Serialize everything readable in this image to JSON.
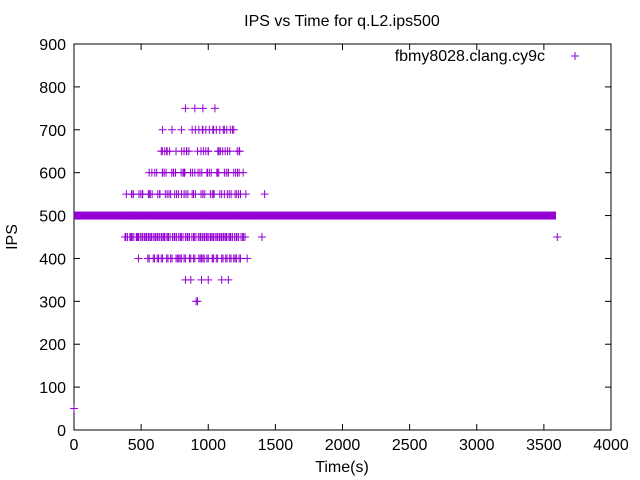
{
  "chart_data": {
    "type": "scatter",
    "title": "IPS vs Time for q.L2.ips500",
    "xlabel": "Time(s)",
    "ylabel": "IPS",
    "xlim": [
      0,
      4000
    ],
    "ylim": [
      0,
      900
    ],
    "xticks": [
      "0",
      "500",
      "1000",
      "1500",
      "2000",
      "2500",
      "3000",
      "3500",
      "4000"
    ],
    "yticks": [
      "0",
      "100",
      "200",
      "300",
      "400",
      "500",
      "600",
      "700",
      "800",
      "900"
    ],
    "grid": false,
    "legend_position": "top-right",
    "marker": "+",
    "series": [
      {
        "name": "fbmy8028.clang.cy9c",
        "color": "#9400d3",
        "x": [
          0,
          380,
          420,
          450,
          520,
          600,
          680,
          760,
          840,
          920,
          1000,
          1080,
          1160,
          1240,
          1300,
          3600,
          420,
          470,
          540,
          620,
          700,
          780,
          860,
          940,
          1020,
          1100,
          1180,
          1260,
          1400,
          390,
          440,
          510,
          560,
          640,
          720,
          800,
          880,
          960,
          1040,
          1120,
          1200,
          1280,
          1420,
          480,
          550,
          630,
          700,
          780,
          860,
          950,
          1030,
          1110,
          1190,
          1290,
          580,
          660,
          740,
          820,
          900,
          990,
          1070,
          1150,
          1230,
          650,
          690,
          760,
          840,
          920,
          1000,
          1080,
          1160,
          1230,
          660,
          730,
          800,
          880,
          960,
          1040,
          1120,
          1180,
          830,
          900,
          960,
          1050,
          830,
          870,
          950,
          1000,
          1100,
          1150,
          910,
          920
        ],
        "y": [
          50,
          500,
          500,
          500,
          500,
          500,
          500,
          500,
          500,
          500,
          500,
          500,
          500,
          500,
          500,
          450,
          450,
          450,
          450,
          450,
          450,
          450,
          450,
          450,
          450,
          450,
          450,
          450,
          450,
          550,
          550,
          550,
          550,
          550,
          550,
          550,
          550,
          550,
          550,
          550,
          550,
          550,
          550,
          400,
          400,
          400,
          400,
          400,
          400,
          400,
          400,
          400,
          400,
          400,
          600,
          600,
          600,
          600,
          600,
          600,
          600,
          600,
          600,
          650,
          650,
          650,
          650,
          650,
          650,
          650,
          650,
          650,
          700,
          700,
          700,
          700,
          700,
          700,
          700,
          700,
          750,
          750,
          750,
          750,
          350,
          350,
          350,
          350,
          350,
          350,
          300,
          300
        ],
        "dense_band": {
          "y": 500,
          "x_range": [
            0,
            3590
          ]
        }
      }
    ]
  }
}
